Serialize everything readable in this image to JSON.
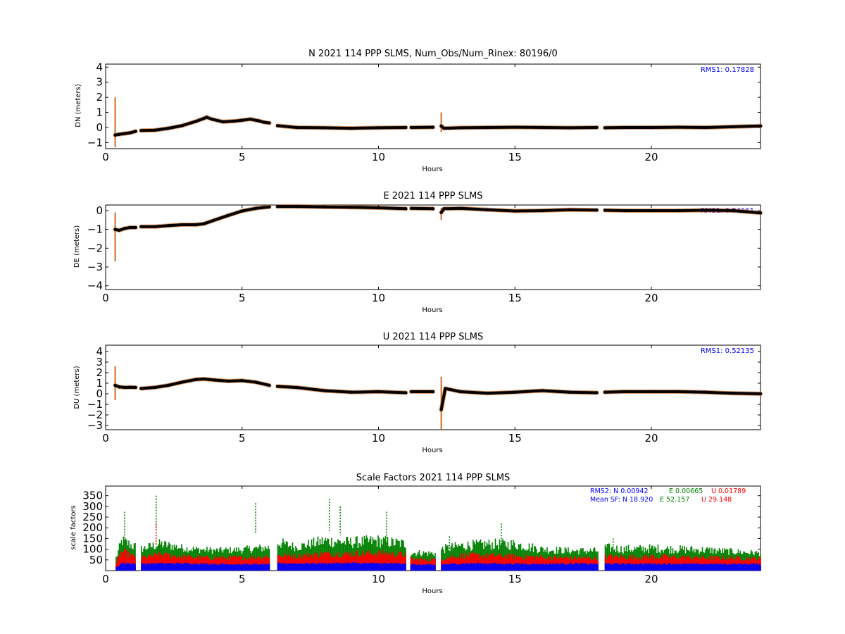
{
  "colors": {
    "trace": "#000000",
    "error": "#d2691e",
    "blue": "#0000ff",
    "green": "#008000",
    "red": "#ff0000",
    "axes": "#000000"
  },
  "chart_data": [
    {
      "type": "scatter",
      "title": "N 2021 114 PPP  SLMS, Num_Obs/Num_Rinex: 80196/0",
      "xlabel": "Hours",
      "ylabel": "DN (meters)",
      "xlim": [
        0,
        24
      ],
      "ylim": [
        -1.4,
        4.2
      ],
      "xticks": [
        0,
        5,
        10,
        15,
        20
      ],
      "yticks": [
        -1,
        0,
        1,
        2,
        3,
        4
      ],
      "annotation": "RMS1:  0.17828",
      "series": [
        {
          "segments": [
            [
              [
                0.35,
                -0.5
              ],
              [
                0.5,
                -0.45
              ],
              [
                0.7,
                -0.4
              ],
              [
                0.9,
                -0.35
              ],
              [
                1.1,
                -0.25
              ]
            ],
            [
              [
                1.3,
                -0.2
              ],
              [
                1.8,
                -0.18
              ],
              [
                2.3,
                -0.05
              ],
              [
                2.8,
                0.12
              ],
              [
                3.3,
                0.4
              ],
              [
                3.6,
                0.6
              ],
              [
                3.7,
                0.68
              ],
              [
                3.9,
                0.55
              ],
              [
                4.3,
                0.38
              ],
              [
                4.7,
                0.42
              ],
              [
                5.0,
                0.48
              ],
              [
                5.3,
                0.55
              ],
              [
                5.6,
                0.45
              ],
              [
                5.8,
                0.35
              ],
              [
                6.0,
                0.3
              ]
            ],
            [
              [
                6.3,
                0.12
              ],
              [
                7,
                0.0
              ],
              [
                8,
                -0.02
              ],
              [
                9,
                -0.05
              ],
              [
                10,
                -0.02
              ],
              [
                11,
                0.0
              ]
            ],
            [
              [
                11.2,
                0.0
              ],
              [
                12.0,
                0.02
              ]
            ],
            [
              [
                12.3,
                0.1
              ],
              [
                12.4,
                -0.05
              ],
              [
                13,
                -0.02
              ],
              [
                14,
                0.0
              ],
              [
                15,
                0.02
              ],
              [
                16,
                0.0
              ],
              [
                17,
                -0.02
              ],
              [
                18.0,
                0.0
              ]
            ],
            [
              [
                18.3,
                -0.02
              ],
              [
                19,
                0.0
              ],
              [
                20,
                0.0
              ],
              [
                21,
                0.02
              ],
              [
                22,
                0.0
              ],
              [
                23,
                0.05
              ],
              [
                24,
                0.1
              ]
            ]
          ]
        }
      ],
      "spikes": [
        {
          "x": 0.35,
          "lo": -1.3,
          "hi": 2.0
        },
        {
          "x": 12.3,
          "lo": -0.3,
          "hi": 1.0
        }
      ]
    },
    {
      "type": "scatter",
      "title": "E 2021 114 PPP  SLMS",
      "xlabel": "Hours",
      "ylabel": "DE (meters)",
      "xlim": [
        0,
        24
      ],
      "ylim": [
        -4.2,
        0.3
      ],
      "xticks": [
        0,
        5,
        10,
        15,
        20
      ],
      "yticks": [
        -4,
        -3,
        -2,
        -1,
        0
      ],
      "annotation": "RMS1:  0.34661",
      "series": [
        {
          "segments": [
            [
              [
                0.35,
                -1.0
              ],
              [
                0.5,
                -1.05
              ],
              [
                0.7,
                -0.95
              ],
              [
                0.9,
                -0.9
              ],
              [
                1.1,
                -0.9
              ]
            ],
            [
              [
                1.3,
                -0.85
              ],
              [
                1.8,
                -0.85
              ],
              [
                2.3,
                -0.8
              ],
              [
                2.8,
                -0.75
              ],
              [
                3.3,
                -0.75
              ],
              [
                3.6,
                -0.7
              ],
              [
                4.0,
                -0.5
              ],
              [
                4.5,
                -0.25
              ],
              [
                5.0,
                -0.02
              ],
              [
                5.5,
                0.12
              ],
              [
                6.0,
                0.2
              ]
            ],
            [
              [
                6.3,
                0.22
              ],
              [
                7,
                0.22
              ],
              [
                8,
                0.2
              ],
              [
                9,
                0.18
              ],
              [
                10,
                0.15
              ],
              [
                11,
                0.1
              ]
            ],
            [
              [
                11.2,
                0.12
              ],
              [
                12.0,
                0.1
              ]
            ],
            [
              [
                12.3,
                -0.1
              ],
              [
                12.4,
                0.1
              ],
              [
                13,
                0.12
              ],
              [
                14,
                0.05
              ],
              [
                15,
                -0.02
              ],
              [
                16,
                0.0
              ],
              [
                17,
                0.05
              ],
              [
                18.0,
                0.03
              ]
            ],
            [
              [
                18.3,
                0.02
              ],
              [
                19,
                0.0
              ],
              [
                20,
                0.0
              ],
              [
                21,
                0.0
              ],
              [
                22,
                0.02
              ],
              [
                23,
                0.0
              ],
              [
                24,
                -0.12
              ]
            ]
          ]
        }
      ],
      "spikes": [
        {
          "x": 0.35,
          "lo": -2.7,
          "hi": -0.1
        },
        {
          "x": 12.3,
          "lo": -0.5,
          "hi": 0.15
        }
      ]
    },
    {
      "type": "scatter",
      "title": "U 2021 114 PPP  SLMS",
      "xlabel": "Hours",
      "ylabel": "DU (meters)",
      "xlim": [
        0,
        24
      ],
      "ylim": [
        -3.4,
        4.6
      ],
      "xticks": [
        0,
        5,
        10,
        15,
        20
      ],
      "yticks": [
        -3,
        -2,
        -1,
        0,
        1,
        2,
        3,
        4
      ],
      "annotation": "RMS1:  0.52135",
      "series": [
        {
          "segments": [
            [
              [
                0.35,
                0.8
              ],
              [
                0.5,
                0.65
              ],
              [
                0.7,
                0.6
              ],
              [
                0.9,
                0.62
              ],
              [
                1.1,
                0.6
              ]
            ],
            [
              [
                1.3,
                0.5
              ],
              [
                1.8,
                0.6
              ],
              [
                2.3,
                0.8
              ],
              [
                2.8,
                1.1
              ],
              [
                3.3,
                1.35
              ],
              [
                3.6,
                1.4
              ],
              [
                4.0,
                1.3
              ],
              [
                4.5,
                1.2
              ],
              [
                5.0,
                1.25
              ],
              [
                5.5,
                1.1
              ],
              [
                6.0,
                0.8
              ]
            ],
            [
              [
                6.3,
                0.7
              ],
              [
                7,
                0.6
              ],
              [
                8,
                0.3
              ],
              [
                9,
                0.15
              ],
              [
                10,
                0.2
              ],
              [
                11,
                0.1
              ]
            ],
            [
              [
                11.2,
                0.2
              ],
              [
                12.0,
                0.2
              ]
            ],
            [
              [
                12.3,
                -1.5
              ],
              [
                12.45,
                0.5
              ],
              [
                13,
                0.2
              ],
              [
                14,
                0.05
              ],
              [
                15,
                0.15
              ],
              [
                16,
                0.3
              ],
              [
                17,
                0.15
              ],
              [
                18.0,
                0.1
              ]
            ],
            [
              [
                18.3,
                0.15
              ],
              [
                19,
                0.2
              ],
              [
                20,
                0.2
              ],
              [
                21,
                0.2
              ],
              [
                22,
                0.15
              ],
              [
                23,
                0.05
              ],
              [
                24,
                0.0
              ]
            ]
          ]
        }
      ],
      "spikes": [
        {
          "x": 0.35,
          "lo": -0.6,
          "hi": 2.6
        },
        {
          "x": 12.3,
          "lo": -3.4,
          "hi": 1.6
        }
      ]
    },
    {
      "type": "area",
      "title": "Scale Factors 2021 114 PPP  SLMS",
      "xlabel": "Hours",
      "ylabel": "scale factors",
      "xlim": [
        0,
        24
      ],
      "ylim": [
        0,
        395
      ],
      "xticks": [
        0,
        5,
        10,
        15,
        20
      ],
      "yticks": [
        50,
        100,
        150,
        200,
        250,
        300,
        350
      ],
      "segments": [
        [
          0.35,
          1.1
        ],
        [
          1.3,
          6.0
        ],
        [
          6.3,
          11.0
        ],
        [
          11.15,
          12.1
        ],
        [
          12.3,
          18.05
        ],
        [
          18.3,
          24
        ]
      ],
      "stats": {
        "rms2_label": "RMS2: N  0.00942",
        "rms2_e": "E  0.00665",
        "rms2_u": "U  0.01789",
        "mean_label": "Mean SF: N  18.920",
        "mean_e": "E  52.157",
        "mean_u": "U  29.148"
      },
      "series": [
        {
          "color": "green",
          "x": [
            0.35,
            0.6,
            1.0,
            1.3,
            2.0,
            3.0,
            4.0,
            5.0,
            6.0,
            6.3,
            7.0,
            8.0,
            9.0,
            10.0,
            11.0,
            11.15,
            12.1,
            12.3,
            13.0,
            14.0,
            15.0,
            16.0,
            17.0,
            18.05,
            18.3,
            19.0,
            20.0,
            21.0,
            22.0,
            23.0,
            24.0
          ],
          "hi": [
            60,
            170,
            140,
            120,
            150,
            120,
            110,
            115,
            130,
            160,
            130,
            170,
            160,
            170,
            150,
            100,
            95,
            120,
            140,
            150,
            150,
            120,
            110,
            110,
            130,
            120,
            125,
            120,
            115,
            105,
            95
          ],
          "lo": [
            10,
            60,
            50,
            50,
            55,
            55,
            50,
            50,
            50,
            55,
            55,
            55,
            55,
            55,
            55,
            40,
            40,
            40,
            50,
            50,
            50,
            45,
            45,
            45,
            45,
            45,
            45,
            45,
            45,
            45,
            45
          ]
        },
        {
          "color": "red",
          "x": [
            0.35,
            0.6,
            1.0,
            1.3,
            2.0,
            3.0,
            4.0,
            5.0,
            6.0,
            6.3,
            7.0,
            8.0,
            9.0,
            10.0,
            11.0,
            11.15,
            12.1,
            12.3,
            13.0,
            14.0,
            15.0,
            16.0,
            17.0,
            18.05,
            18.3,
            19.0,
            20.0,
            21.0,
            22.0,
            23.0,
            24.0
          ],
          "hi": [
            30,
            110,
            80,
            70,
            90,
            75,
            70,
            72,
            80,
            85,
            80,
            95,
            95,
            100,
            90,
            65,
            60,
            70,
            85,
            85,
            80,
            75,
            70,
            70,
            80,
            75,
            78,
            75,
            72,
            70,
            65
          ],
          "lo": [
            5,
            35,
            30,
            30,
            32,
            32,
            30,
            30,
            30,
            33,
            33,
            33,
            33,
            33,
            33,
            25,
            25,
            25,
            30,
            30,
            30,
            28,
            28,
            28,
            28,
            28,
            28,
            28,
            28,
            28,
            28
          ]
        },
        {
          "color": "blue",
          "x": [
            0.35,
            0.6,
            1.0,
            1.3,
            2.0,
            3.0,
            4.0,
            5.0,
            6.0,
            6.3,
            7.0,
            8.0,
            9.0,
            10.0,
            11.0,
            11.15,
            12.1,
            12.3,
            13.0,
            14.0,
            15.0,
            16.0,
            17.0,
            18.05,
            18.3,
            19.0,
            20.0,
            21.0,
            22.0,
            23.0,
            24.0
          ],
          "hi": [
            15,
            40,
            38,
            35,
            38,
            38,
            35,
            33,
            33,
            38,
            38,
            38,
            40,
            38,
            38,
            32,
            30,
            32,
            38,
            38,
            36,
            35,
            38,
            35,
            36,
            36,
            36,
            36,
            35,
            35,
            35
          ],
          "lo": [
            3,
            22,
            22,
            22,
            22,
            22,
            20,
            20,
            20,
            22,
            22,
            22,
            22,
            22,
            22,
            18,
            18,
            18,
            20,
            20,
            20,
            20,
            20,
            20,
            20,
            20,
            20,
            20,
            20,
            20,
            20
          ]
        }
      ],
      "peaks": [
        {
          "x": 1.85,
          "color": "green",
          "v": 350
        },
        {
          "x": 1.85,
          "color": "red",
          "v": 220
        },
        {
          "x": 0.7,
          "color": "green",
          "v": 275
        },
        {
          "x": 5.5,
          "color": "green",
          "v": 315
        },
        {
          "x": 8.2,
          "color": "green",
          "v": 335
        },
        {
          "x": 8.6,
          "color": "green",
          "v": 300
        },
        {
          "x": 10.3,
          "color": "green",
          "v": 275
        },
        {
          "x": 12.6,
          "color": "green",
          "v": 160
        },
        {
          "x": 14.5,
          "color": "green",
          "v": 220
        },
        {
          "x": 18.6,
          "color": "green",
          "v": 150
        }
      ]
    }
  ]
}
